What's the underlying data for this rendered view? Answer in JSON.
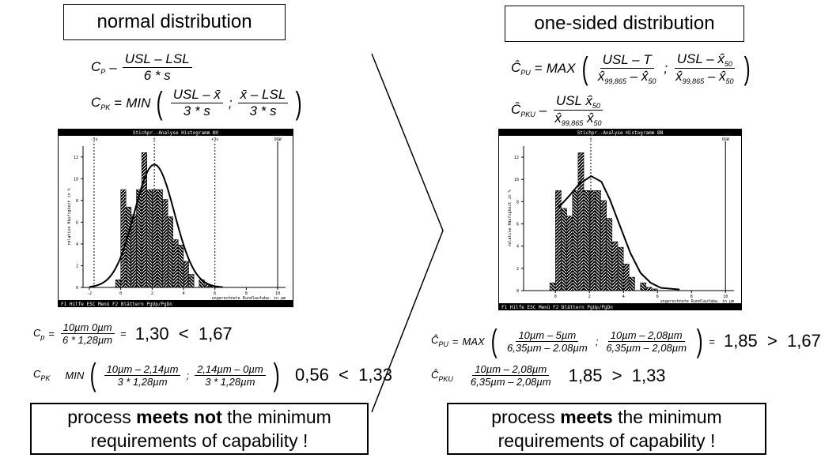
{
  "left": {
    "title": "normal distribution",
    "formula_cp": {
      "lhs": "C",
      "sub": "P",
      "eq": "–",
      "num": "USL – LSL",
      "den": "6 * s"
    },
    "formula_cpk": {
      "lhs": "C",
      "sub": "PK",
      "eq": "=",
      "fn": "MIN",
      "num1": "USL – x̄",
      "den1": "3 * s",
      "sep": ";",
      "num2": "x̄ – LSL",
      "den2": "3 * s"
    },
    "calc_cp": {
      "lhs": "C",
      "sub": "p",
      "eq": "=",
      "num": "10µm   0µm",
      "den": "6 * 1,28µm",
      "eq2": "=",
      "result": "1,30  <  1,67"
    },
    "calc_cpk": {
      "lhs": "C",
      "sub": "PK",
      "fn": "MIN",
      "num1": "10µm – 2,14µm",
      "den1": "3 * 1,28µm",
      "sep": ";",
      "num2": "2,14µm – 0µm",
      "den2": "3 * 1,28µm",
      "result": "0,56  <  1,33"
    },
    "conclusion_pre": "process ",
    "conclusion_bold": "meets not",
    "conclusion_post": " the minimum",
    "conclusion_line2": "requirements of capability !"
  },
  "right": {
    "title": "one-sided distribution",
    "formula_cpu": {
      "lhs": "Ĉ",
      "sub": "PU",
      "eq": "=",
      "fn": "MAX",
      "num1": "USL – T",
      "den1a": "x̂",
      "den1s": "99,865",
      "den1b": " – x̂",
      "den1t": "50",
      "sep": ";",
      "num2": "USL – x̂",
      "num2s": "50",
      "den2a": "x̂",
      "den2s": "99,865",
      "den2b": " – x̂",
      "den2t": "50"
    },
    "formula_cpku": {
      "lhs": "Ĉ",
      "sub": "PKU",
      "eq": "–",
      "num": "USL   x̂",
      "nums": "50",
      "dena": "x̂",
      "dens": "99,865",
      "denb": "   x̂",
      "dent": "50"
    },
    "calc_cpu": {
      "lhs": "Ĉ",
      "sub": "PU",
      "eq": "=",
      "fn": "MAX",
      "num1": "10µm – 5µm",
      "den1": "6,35µm – 2.08µm",
      "sep": ";",
      "num2": "10µm – 2,08µm",
      "den2": "6,35µm – 2,08µm",
      "eq2": "=",
      "result": "1,85  >  1,67"
    },
    "calc_cpku": {
      "lhs": "Ĉ",
      "sub": "PKU",
      "num": "10µm – 2,08µm",
      "den": "6,35µm – 2,08µm",
      "result": "1,85  >  1,33"
    },
    "conclusion_pre": "process ",
    "conclusion_bold": "meets",
    "conclusion_post": " the minimum",
    "conclusion_line2": "requirements of capability !"
  },
  "chart_data": [
    {
      "type": "bar",
      "title": "Stichpr.-Analyse Histogramm NV",
      "ylabel": "relative Häufigkeit in %",
      "xlabel": "ungerechnete Rundlaufabw. in µm",
      "xlim": [
        -2,
        10.5
      ],
      "ylim": [
        0,
        13
      ],
      "xticks": [
        "-2",
        "0",
        "2",
        "4",
        "6",
        "8",
        "10"
      ],
      "yticks": [
        "0",
        "2",
        "4",
        "6",
        "8",
        "10",
        "12"
      ],
      "bin_width": 0.333,
      "bin_start": -0.333,
      "values": [
        0.7,
        9,
        7.4,
        6.7,
        9,
        12.4,
        9,
        9,
        9,
        8.1,
        6.5,
        4.4,
        3.9,
        2.4,
        1.2,
        0,
        0.7,
        0.3,
        0.15
      ],
      "fit": {
        "kind": "normal",
        "mean": 2.14,
        "sd": 1.28,
        "peak": 11.3
      },
      "markers": [
        {
          "label": "-3s",
          "x": -1.7
        },
        {
          "label": "x̄",
          "x": 2.14
        },
        {
          "label": "+3s",
          "x": 6.0
        },
        {
          "label": "OGW",
          "x": 10
        }
      ],
      "footer": "F1 Hilfe    ESC Menü    F2 Blättern    PgUp/PgDn"
    },
    {
      "type": "bar",
      "title": "Stichpr.-Analyse Histogramm BN",
      "ylabel": "relative Häufigkeit in %",
      "xlabel": "ungerechnete Rundlaufabw. in µm",
      "xlim": [
        -1.5,
        10.5
      ],
      "ylim": [
        0,
        13
      ],
      "xticks": [
        "0",
        "2",
        "4",
        "6",
        "8",
        "10"
      ],
      "yticks": [
        "0",
        "2",
        "4",
        "6",
        "8",
        "10",
        "12"
      ],
      "bin_width": 0.333,
      "bin_start": -0.333,
      "values": [
        0.7,
        9,
        7.4,
        6.7,
        9,
        12.4,
        9,
        9,
        9,
        8.1,
        6.5,
        4.4,
        3.9,
        2.4,
        1.2,
        0,
        0.7,
        0.3,
        0.15
      ],
      "fit": {
        "kind": "skewed",
        "points": [
          [
            0.2,
            7.5
          ],
          [
            0.8,
            8.5
          ],
          [
            1.4,
            9.6
          ],
          [
            2.1,
            10.3
          ],
          [
            2.7,
            9.8
          ],
          [
            3.2,
            8.2
          ],
          [
            3.8,
            5.8
          ],
          [
            4.4,
            3.4
          ],
          [
            5.0,
            1.6
          ],
          [
            5.6,
            0.7
          ],
          [
            6.2,
            0.25
          ],
          [
            7.3,
            0.1
          ]
        ]
      },
      "markers": [
        {
          "label": "x̃",
          "x": 2.08
        },
        {
          "label": "OGW",
          "x": 10
        }
      ],
      "footer": "F1 Hilfe    ESC Menü    F2 Blättern    PgUp/PgDn"
    }
  ]
}
